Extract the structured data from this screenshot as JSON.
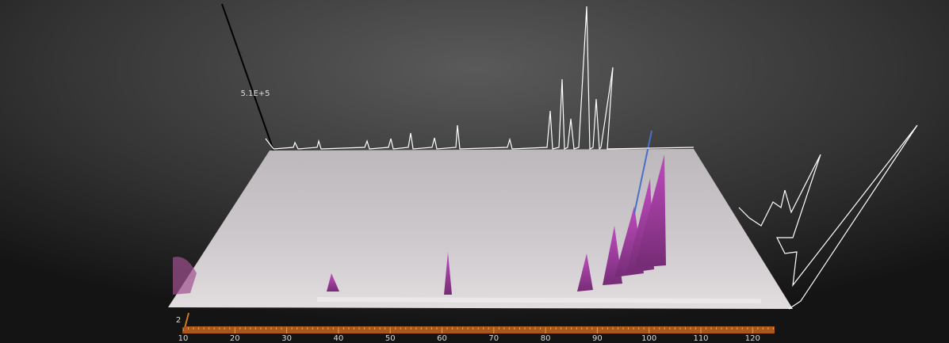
{
  "axis": {
    "x_ticks": [
      "10",
      "20",
      "30",
      "40",
      "50",
      "60",
      "70",
      "80",
      "90",
      "100",
      "110",
      "120"
    ],
    "y_tick": "2",
    "z_label": "5.1E+5"
  }
}
